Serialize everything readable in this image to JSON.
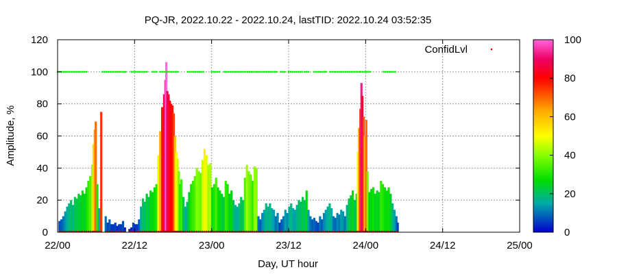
{
  "chart_data": {
    "type": "bar",
    "title": "PQ-JR, 2022.10.22 - 2022.10.24, lastTID: 2022.10.24 03:52:35",
    "xlabel": "Day, UT hour",
    "ylabel": "Amplitude, %",
    "xlim": [
      0,
      72
    ],
    "ylim": [
      0,
      120
    ],
    "x_ticks": [
      {
        "value": 0,
        "label": "22/00"
      },
      {
        "value": 12,
        "label": "22/12"
      },
      {
        "value": 24,
        "label": "23/00"
      },
      {
        "value": 36,
        "label": "23/12"
      },
      {
        "value": 48,
        "label": "24/00"
      },
      {
        "value": 60,
        "label": "24/12"
      },
      {
        "value": 72,
        "label": "25/00"
      }
    ],
    "y_ticks": [
      0,
      20,
      40,
      60,
      80,
      100,
      120
    ],
    "grid": true,
    "legend": {
      "label": "ConfidLvl",
      "position": "top-right",
      "marker_color": "#cc0000"
    },
    "colorbar": {
      "min": 0,
      "max": 100,
      "ticks": [
        0,
        20,
        40,
        60,
        80,
        100
      ]
    },
    "series": [
      {
        "kind": "amplitude_bars",
        "points": [
          [
            0.3,
            7
          ],
          [
            0.6,
            8
          ],
          [
            0.9,
            10
          ],
          [
            1.2,
            13
          ],
          [
            1.5,
            16
          ],
          [
            1.8,
            18
          ],
          [
            2.1,
            20
          ],
          [
            2.4,
            17
          ],
          [
            2.7,
            22
          ],
          [
            3.0,
            21
          ],
          [
            3.3,
            24
          ],
          [
            3.6,
            23
          ],
          [
            3.9,
            26
          ],
          [
            4.2,
            24
          ],
          [
            4.5,
            28
          ],
          [
            4.8,
            32
          ],
          [
            5.1,
            35
          ],
          [
            5.4,
            42
          ],
          [
            5.6,
            55
          ],
          [
            5.8,
            64
          ],
          [
            5.95,
            69
          ],
          [
            6.2,
            30
          ],
          [
            6.5,
            15
          ],
          [
            6.8,
            75
          ],
          [
            7.5,
            10
          ],
          [
            7.8,
            6
          ],
          [
            8.1,
            8
          ],
          [
            8.4,
            5
          ],
          [
            8.7,
            5
          ],
          [
            9.0,
            6
          ],
          [
            9.3,
            4
          ],
          [
            9.6,
            5
          ],
          [
            9.9,
            5
          ],
          [
            10.2,
            7
          ],
          [
            10.5,
            3
          ],
          [
            11.2,
            2
          ],
          [
            11.5,
            3
          ],
          [
            11.8,
            6
          ],
          [
            12.1,
            5
          ],
          [
            12.4,
            5
          ],
          [
            12.7,
            8
          ],
          [
            13.0,
            16
          ],
          [
            13.3,
            21
          ],
          [
            13.6,
            19
          ],
          [
            13.9,
            24
          ],
          [
            14.2,
            22
          ],
          [
            14.5,
            26
          ],
          [
            14.8,
            25
          ],
          [
            15.1,
            28
          ],
          [
            15.4,
            30
          ],
          [
            15.7,
            48
          ],
          [
            16.0,
            63
          ],
          [
            16.3,
            78
          ],
          [
            16.6,
            86
          ],
          [
            16.8,
            95
          ],
          [
            16.95,
            106
          ],
          [
            17.1,
            88
          ],
          [
            17.3,
            86
          ],
          [
            17.5,
            82
          ],
          [
            17.7,
            80
          ],
          [
            17.9,
            79
          ],
          [
            18.1,
            74
          ],
          [
            18.3,
            60
          ],
          [
            18.5,
            50
          ],
          [
            18.7,
            46
          ],
          [
            18.9,
            38
          ],
          [
            19.1,
            30
          ],
          [
            19.3,
            33
          ],
          [
            19.6,
            22
          ],
          [
            19.9,
            16
          ],
          [
            20.2,
            19
          ],
          [
            20.5,
            25
          ],
          [
            20.8,
            30
          ],
          [
            21.1,
            32
          ],
          [
            21.4,
            35
          ],
          [
            21.7,
            40
          ],
          [
            22.0,
            38
          ],
          [
            22.3,
            37
          ],
          [
            22.6,
            45
          ],
          [
            22.9,
            52
          ],
          [
            23.2,
            48
          ],
          [
            23.5,
            42
          ],
          [
            23.8,
            43
          ],
          [
            24.1,
            28
          ],
          [
            24.4,
            30
          ],
          [
            24.7,
            34
          ],
          [
            25.0,
            28
          ],
          [
            25.3,
            26
          ],
          [
            25.6,
            24
          ],
          [
            25.9,
            22
          ],
          [
            26.2,
            32
          ],
          [
            26.5,
            30
          ],
          [
            26.8,
            24
          ],
          [
            27.1,
            26
          ],
          [
            27.4,
            20
          ],
          [
            27.7,
            17
          ],
          [
            28.0,
            16
          ],
          [
            28.3,
            18
          ],
          [
            28.6,
            22
          ],
          [
            28.9,
            20
          ],
          [
            29.2,
            34
          ],
          [
            29.5,
            42
          ],
          [
            29.8,
            38
          ],
          [
            30.1,
            36
          ],
          [
            30.4,
            32
          ],
          [
            30.7,
            41
          ],
          [
            31.0,
            40
          ],
          [
            31.3,
            10
          ],
          [
            31.6,
            8
          ],
          [
            31.9,
            12
          ],
          [
            32.2,
            14
          ],
          [
            32.5,
            18
          ],
          [
            32.8,
            16
          ],
          [
            33.1,
            18
          ],
          [
            33.4,
            15
          ],
          [
            33.7,
            14
          ],
          [
            34.0,
            10
          ],
          [
            34.3,
            12
          ],
          [
            34.6,
            6
          ],
          [
            34.9,
            8
          ],
          [
            35.2,
            10
          ],
          [
            35.5,
            14
          ],
          [
            35.8,
            12
          ],
          [
            36.1,
            16
          ],
          [
            36.4,
            18
          ],
          [
            36.7,
            15
          ],
          [
            37.0,
            14
          ],
          [
            37.3,
            17
          ],
          [
            37.6,
            20
          ],
          [
            37.9,
            19
          ],
          [
            38.2,
            22
          ],
          [
            38.5,
            20
          ],
          [
            38.8,
            26
          ],
          [
            39.1,
            14
          ],
          [
            39.4,
            10
          ],
          [
            39.7,
            8
          ],
          [
            40.0,
            9
          ],
          [
            40.3,
            7
          ],
          [
            40.6,
            6
          ],
          [
            40.9,
            10
          ],
          [
            41.2,
            8
          ],
          [
            41.5,
            12
          ],
          [
            41.8,
            14
          ],
          [
            42.1,
            16
          ],
          [
            42.4,
            18
          ],
          [
            42.7,
            15
          ],
          [
            43.0,
            10
          ],
          [
            43.3,
            9
          ],
          [
            43.6,
            12
          ],
          [
            43.9,
            11
          ],
          [
            44.2,
            14
          ],
          [
            44.5,
            13
          ],
          [
            44.8,
            10
          ],
          [
            45.1,
            17
          ],
          [
            45.4,
            21
          ],
          [
            45.7,
            23
          ],
          [
            46.0,
            26
          ],
          [
            46.3,
            20
          ],
          [
            46.6,
            24
          ],
          [
            46.8,
            50
          ],
          [
            47.0,
            65
          ],
          [
            47.2,
            77
          ],
          [
            47.35,
            93
          ],
          [
            47.5,
            85
          ],
          [
            47.7,
            72
          ],
          [
            47.9,
            60
          ],
          [
            48.1,
            70
          ],
          [
            48.3,
            38
          ],
          [
            48.6,
            25
          ],
          [
            48.9,
            27
          ],
          [
            49.2,
            28
          ],
          [
            49.5,
            24
          ],
          [
            49.8,
            26
          ],
          [
            50.1,
            25
          ],
          [
            50.4,
            32
          ],
          [
            50.7,
            30
          ],
          [
            51.0,
            28
          ],
          [
            51.3,
            26
          ],
          [
            51.6,
            28
          ],
          [
            51.9,
            24
          ],
          [
            52.2,
            18
          ],
          [
            52.5,
            14
          ],
          [
            52.8,
            10
          ],
          [
            53.0,
            6
          ]
        ]
      },
      {
        "kind": "confidence_points",
        "name": "ConfidLvl",
        "color_top": "#00ee00",
        "color_base": "#cc0000",
        "top_ranges": [
          [
            0,
            1.2
          ],
          [
            1.5,
            4.5
          ],
          [
            7.0,
            10.8
          ],
          [
            11.5,
            14.0
          ],
          [
            14.8,
            15.5
          ],
          [
            16.0,
            18.8
          ],
          [
            20.3,
            22.8
          ],
          [
            24.0,
            25.3
          ],
          [
            26.0,
            34.2
          ],
          [
            34.8,
            35.6
          ],
          [
            36.0,
            38.2
          ],
          [
            38.5,
            39.3
          ],
          [
            40.0,
            42.0
          ],
          [
            42.5,
            47.0
          ],
          [
            47.2,
            48.8
          ],
          [
            50.8,
            52.8
          ]
        ]
      }
    ]
  }
}
